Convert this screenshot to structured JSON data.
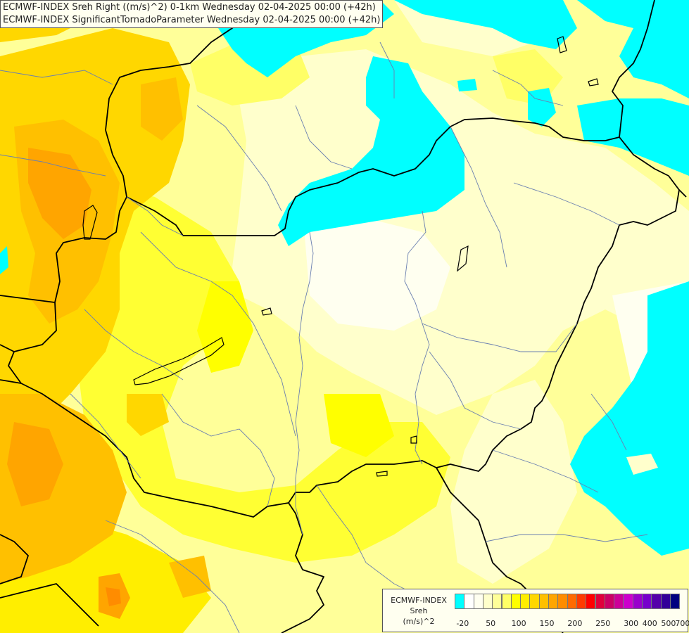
{
  "header": {
    "line1": "ECMWF-INDEX Sreh Right ((m/s)^2) 0-1km Wednesday 02-04-2025 00:00 (+42h)",
    "line2": "ECMWF-INDEX SignificantTornadoParameter Wednesday 02-04-2025 00:00 (+42h)"
  },
  "legend": {
    "line1": "ECMWF-INDEX",
    "line2": "Sreh",
    "line3": "(m/s)^2",
    "colors": [
      "#00ffff",
      "#ffffff",
      "#fffff0",
      "#ffffcc",
      "#ffff99",
      "#ffff66",
      "#ffff00",
      "#ffee00",
      "#ffd700",
      "#ffc000",
      "#ffa500",
      "#ff8c00",
      "#ff6a00",
      "#ff3a00",
      "#ff0000",
      "#e0003c",
      "#cc0066",
      "#cc0099",
      "#cc00cc",
      "#9900cc",
      "#7700cc",
      "#5500aa",
      "#330099",
      "#000080"
    ],
    "ticks": [
      "-20",
      "50",
      "100",
      "150",
      "200",
      "250",
      "300",
      "400",
      "500",
      "700"
    ]
  }
}
